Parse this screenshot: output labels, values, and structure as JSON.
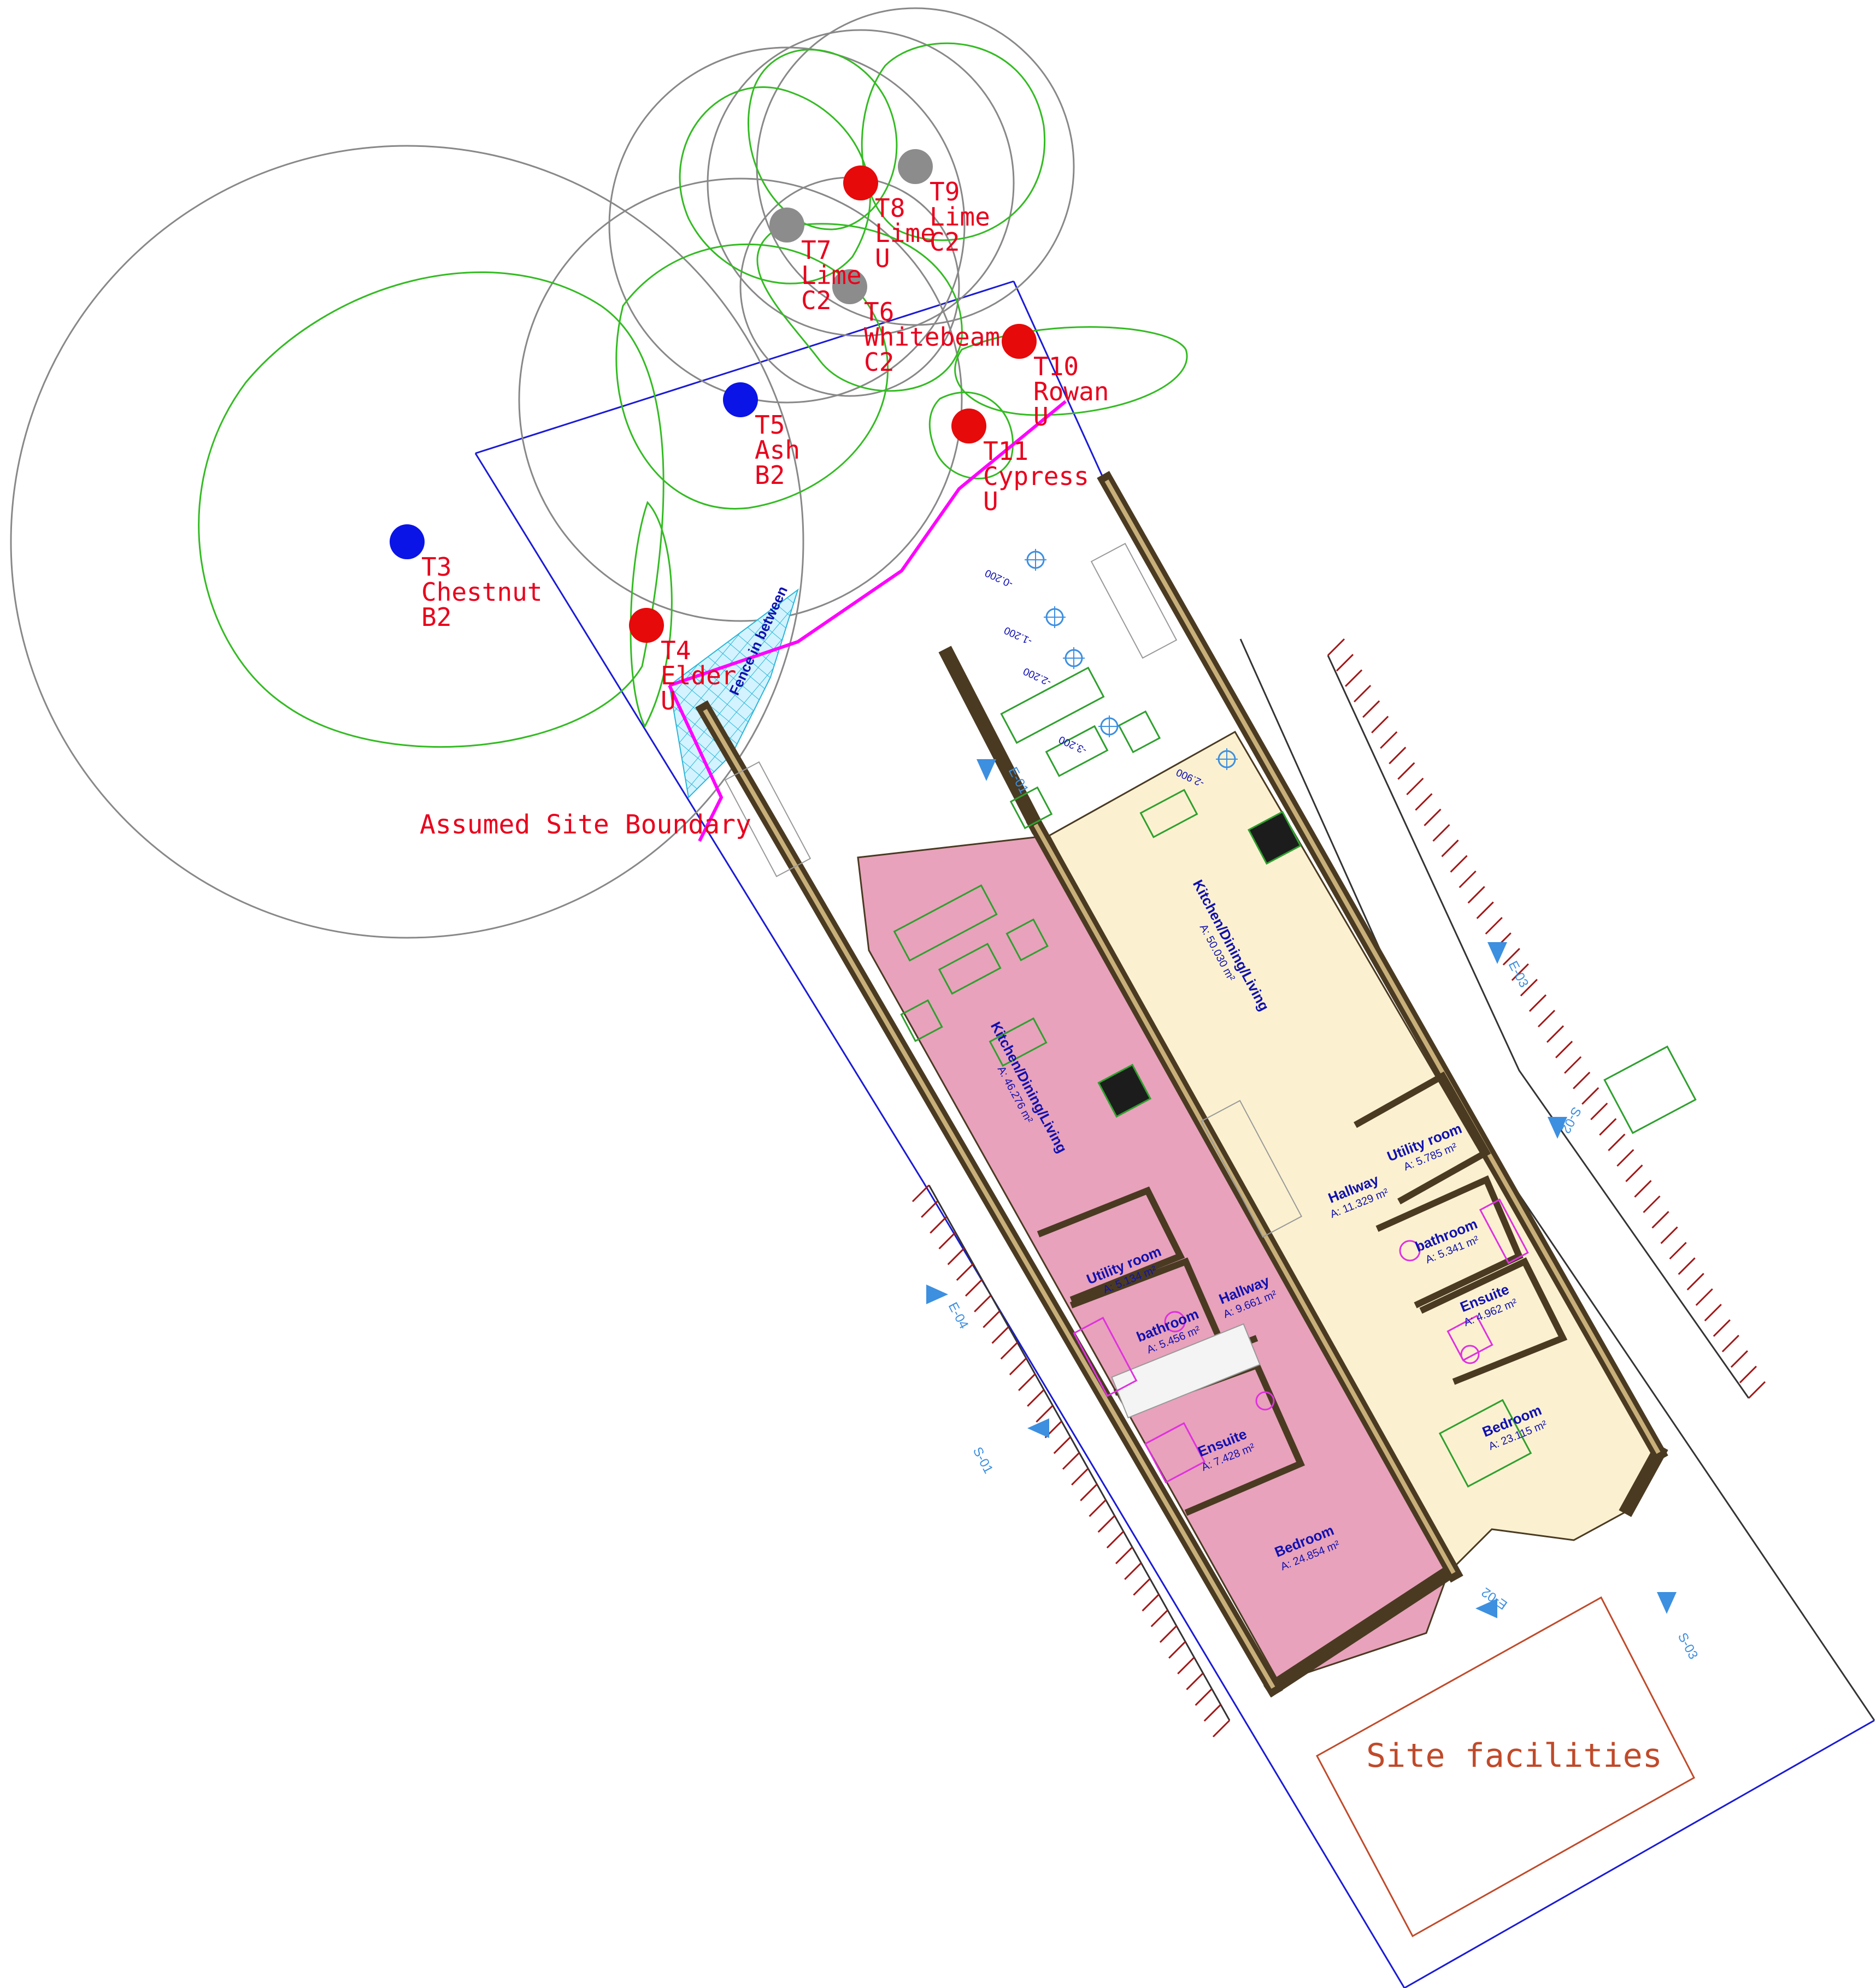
{
  "site": {
    "boundary_label": "Assumed Site Boundary",
    "fence_label": "Fence in between",
    "facilities_label": "Site facilities"
  },
  "trees": [
    {
      "id": "T3",
      "species": "Chestnut",
      "grade": "B2",
      "status_color": "#0a14e6"
    },
    {
      "id": "T4",
      "species": "Elder",
      "grade": "U",
      "status_color": "#e60a0a"
    },
    {
      "id": "T5",
      "species": "Ash",
      "grade": "B2",
      "status_color": "#0a14e6"
    },
    {
      "id": "T6",
      "species": "Whitebeam",
      "grade": "C2",
      "status_color": "#8c8c8c"
    },
    {
      "id": "T7",
      "species": "Lime",
      "grade": "C2",
      "status_color": "#8c8c8c"
    },
    {
      "id": "T8",
      "species": "Lime",
      "grade": "U",
      "status_color": "#e60a0a"
    },
    {
      "id": "T9",
      "species": "Lime",
      "grade": "C2",
      "status_color": "#8c8c8c"
    },
    {
      "id": "T10",
      "species": "Rowan",
      "grade": "U",
      "status_color": "#e60a0a"
    },
    {
      "id": "T11",
      "species": "Cypress",
      "grade": "U",
      "status_color": "#e60a0a"
    }
  ],
  "units": {
    "left": {
      "fill_color": "#e8a2bb",
      "rooms": {
        "kitchen": {
          "name": "Kitchen/Dining/Living",
          "area": "A: 46.276 m²"
        },
        "utility": {
          "name": "Utility room",
          "area": "A: 5.134 m²"
        },
        "bathroom": {
          "name": "bathroom",
          "area": "A: 5.456 m²"
        },
        "hallway": {
          "name": "Hallway",
          "area": "A: 9.661 m²"
        },
        "ensuite": {
          "name": "Ensuite",
          "area": "A: 7.428 m²"
        },
        "bedroom": {
          "name": "Bedroom",
          "area": "A: 24.854 m²"
        }
      }
    },
    "right": {
      "fill_color": "#fbf1d0",
      "rooms": {
        "kitchen": {
          "name": "Kitchen/Dining/Living",
          "area": "A: 50.030 m²"
        },
        "utility": {
          "name": "Utility room",
          "area": "A: 5.785 m²"
        },
        "bathroom": {
          "name": "bathroom",
          "area": "A: 5.341 m²"
        },
        "hallway": {
          "name": "Hallway",
          "area": "A: 11.329 m²"
        },
        "ensuite": {
          "name": "Ensuite",
          "area": "A: 4.962 m²"
        },
        "bedroom": {
          "name": "Bedroom",
          "area": "A: 23.115 m²"
        }
      }
    }
  },
  "levels": [
    "-0.200",
    "-1.200",
    "-2.200",
    "-3.200",
    "-2.900"
  ],
  "section_markers": [
    "E-01",
    "S-01",
    "E-02",
    "S-03",
    "E-04",
    "E-03",
    "S-02"
  ],
  "colors": {
    "boundary_line": "#1a1ad6",
    "fence_line": "#ff00ff",
    "wall": "#4a3a22",
    "root_zone": "#33bb22",
    "canopy": "#888888",
    "marker": "#3d8fe0",
    "furniture": "#2ea02e",
    "sanitary": "#e030e0"
  }
}
